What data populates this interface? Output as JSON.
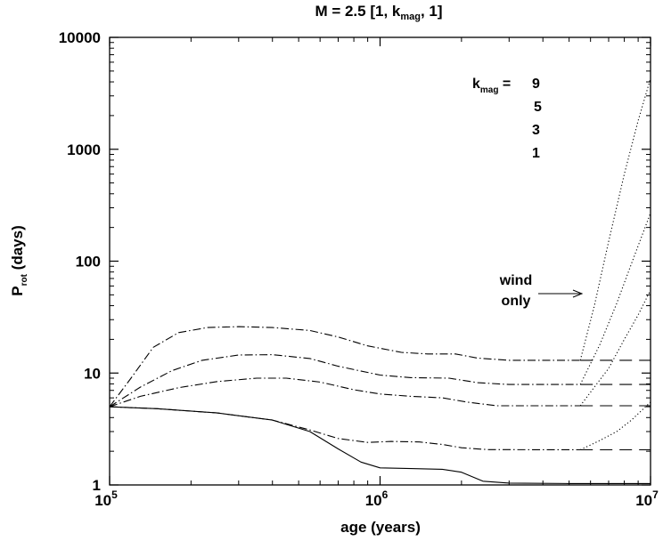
{
  "chart_data": {
    "type": "line",
    "title": {
      "main": "M = 2.5  [1, k",
      "sub": "mag",
      "tail": ", 1]"
    },
    "xlabel": "age (years)",
    "ylabel": {
      "main": "P",
      "sub": "rot",
      "tail": " (days)"
    },
    "x_scale": "log",
    "y_scale": "log",
    "xlim": [
      100000,
      10000000
    ],
    "ylim": [
      1,
      10000
    ],
    "x_ticks": [
      {
        "value": 100000,
        "base": "10",
        "exp": "5"
      },
      {
        "value": 1000000,
        "base": "10",
        "exp": "6"
      },
      {
        "value": 10000000,
        "base": "10",
        "exp": "7"
      }
    ],
    "y_ticks": [
      {
        "value": 1,
        "label": "1"
      },
      {
        "value": 10,
        "label": "10"
      },
      {
        "value": 100,
        "label": "100"
      },
      {
        "value": 1000,
        "label": "1000"
      },
      {
        "value": 10000,
        "label": "10000"
      }
    ],
    "legend": {
      "key": "k",
      "key_sub": "mag",
      "key_tail": " =",
      "values": [
        "9",
        "5",
        "3",
        "1"
      ]
    },
    "annotation": {
      "line1": "wind",
      "line2": "only"
    },
    "series": [
      {
        "style": "solid",
        "points": [
          [
            100000,
            5
          ],
          [
            150000,
            4.8
          ],
          [
            250000,
            4.4
          ],
          [
            400000,
            3.8
          ],
          [
            550000,
            3.0
          ],
          [
            700000,
            2.1
          ],
          [
            850000,
            1.6
          ],
          [
            1000000,
            1.42
          ],
          [
            1300000,
            1.4
          ],
          [
            1700000,
            1.38
          ],
          [
            2000000,
            1.3
          ],
          [
            2400000,
            1.08
          ],
          [
            3000000,
            1.04
          ],
          [
            5000000,
            1.03
          ],
          [
            10000000,
            1.03
          ]
        ]
      },
      {
        "style": "dashdot",
        "points": [
          [
            100000,
            5
          ],
          [
            150000,
            4.8
          ],
          [
            250000,
            4.4
          ],
          [
            400000,
            3.8
          ],
          [
            550000,
            3.1
          ],
          [
            700000,
            2.6
          ],
          [
            900000,
            2.4
          ],
          [
            1100000,
            2.45
          ],
          [
            1400000,
            2.42
          ],
          [
            1700000,
            2.3
          ],
          [
            2000000,
            2.15
          ],
          [
            2500000,
            2.07
          ],
          [
            5500000,
            2.06
          ]
        ]
      },
      {
        "style": "dashdot",
        "points": [
          [
            100000,
            5
          ],
          [
            130000,
            6.2
          ],
          [
            180000,
            7.4
          ],
          [
            250000,
            8.4
          ],
          [
            350000,
            9
          ],
          [
            450000,
            9
          ],
          [
            600000,
            8.3
          ],
          [
            800000,
            7.1
          ],
          [
            1000000,
            6.5
          ],
          [
            1300000,
            6.2
          ],
          [
            1700000,
            6
          ],
          [
            2100000,
            5.5
          ],
          [
            2700000,
            5.1
          ],
          [
            5500000,
            5.1
          ]
        ]
      },
      {
        "style": "dashdot",
        "points": [
          [
            100000,
            5
          ],
          [
            130000,
            7.5
          ],
          [
            170000,
            10.5
          ],
          [
            220000,
            13
          ],
          [
            300000,
            14.5
          ],
          [
            400000,
            14.6
          ],
          [
            550000,
            13.5
          ],
          [
            700000,
            11.5
          ],
          [
            1000000,
            9.6
          ],
          [
            1300000,
            9.1
          ],
          [
            1800000,
            9
          ],
          [
            2300000,
            8.2
          ],
          [
            3000000,
            7.9
          ],
          [
            5500000,
            7.9
          ]
        ]
      },
      {
        "style": "dashdot",
        "points": [
          [
            100000,
            5
          ],
          [
            120000,
            9
          ],
          [
            145000,
            17
          ],
          [
            180000,
            23
          ],
          [
            230000,
            25.5
          ],
          [
            300000,
            26
          ],
          [
            400000,
            25.5
          ],
          [
            550000,
            24
          ],
          [
            700000,
            21
          ],
          [
            900000,
            17.5
          ],
          [
            1200000,
            15.3
          ],
          [
            1500000,
            14.8
          ],
          [
            1900000,
            14.8
          ],
          [
            2300000,
            13.6
          ],
          [
            3000000,
            13
          ],
          [
            5500000,
            13
          ]
        ]
      },
      {
        "style": "dashed",
        "points": [
          [
            5500000,
            13
          ],
          [
            10000000,
            13
          ]
        ]
      },
      {
        "style": "dashed",
        "points": [
          [
            5500000,
            7.9
          ],
          [
            10000000,
            7.9
          ]
        ]
      },
      {
        "style": "dashed",
        "points": [
          [
            5500000,
            5.1
          ],
          [
            10000000,
            5.1
          ]
        ]
      },
      {
        "style": "dashed",
        "points": [
          [
            5500000,
            2.06
          ],
          [
            10000000,
            2.06
          ]
        ]
      },
      {
        "style": "dotted",
        "points": [
          [
            5500000,
            13
          ],
          [
            6200000,
            40
          ],
          [
            7000000,
            150
          ],
          [
            8000000,
            600
          ],
          [
            9000000,
            1800
          ],
          [
            10000000,
            4300
          ]
        ]
      },
      {
        "style": "dotted",
        "points": [
          [
            5500000,
            7.9
          ],
          [
            6500000,
            18
          ],
          [
            7500000,
            42
          ],
          [
            8500000,
            95
          ],
          [
            10000000,
            270
          ]
        ]
      },
      {
        "style": "dotted",
        "points": [
          [
            5500000,
            5.1
          ],
          [
            6200000,
            7.5
          ],
          [
            7000000,
            11
          ],
          [
            8000000,
            20
          ],
          [
            9000000,
            33
          ],
          [
            10000000,
            55
          ]
        ]
      },
      {
        "style": "dotted",
        "points": [
          [
            5500000,
            2.06
          ],
          [
            6500000,
            2.5
          ],
          [
            7500000,
            3
          ],
          [
            8500000,
            3.8
          ],
          [
            10000000,
            5.5
          ]
        ]
      }
    ]
  }
}
